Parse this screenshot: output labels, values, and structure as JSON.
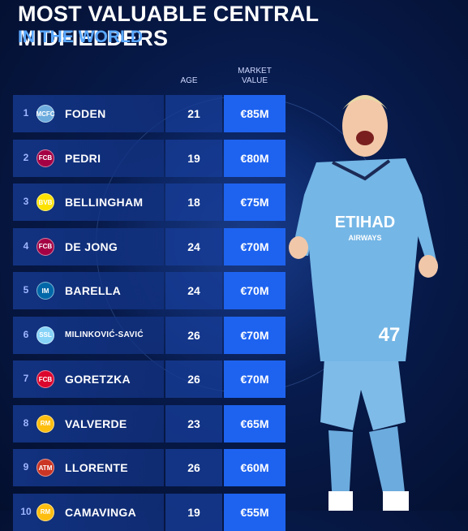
{
  "title": "MOST VALUABLE CENTRAL MIDFIELDERS",
  "subtitle": "IN THE WORLD",
  "headers": {
    "age": "AGE",
    "market_value_line1": "MARKET",
    "market_value_line2": "VALUE"
  },
  "rows": [
    {
      "rank": "1",
      "name": "FODEN",
      "age": "21",
      "value": "€85M",
      "crest": "MCFC",
      "crest_color": "#6cabdd"
    },
    {
      "rank": "2",
      "name": "PEDRI",
      "age": "19",
      "value": "€80M",
      "crest": "FCB",
      "crest_color": "#a50044"
    },
    {
      "rank": "3",
      "name": "BELLINGHAM",
      "age": "18",
      "value": "€75M",
      "crest": "BVB",
      "crest_color": "#fde100"
    },
    {
      "rank": "4",
      "name": "DE JONG",
      "age": "24",
      "value": "€70M",
      "crest": "FCB",
      "crest_color": "#a50044"
    },
    {
      "rank": "5",
      "name": "BARELLA",
      "age": "24",
      "value": "€70M",
      "crest": "IM",
      "crest_color": "#0068a8"
    },
    {
      "rank": "6",
      "name": "MILINKOVIĆ-SAVIĆ",
      "age": "26",
      "value": "€70M",
      "crest": "SSL",
      "crest_color": "#87d3f8"
    },
    {
      "rank": "7",
      "name": "GORETZKA",
      "age": "26",
      "value": "€70M",
      "crest": "FCB",
      "crest_color": "#dc052d"
    },
    {
      "rank": "8",
      "name": "VALVERDE",
      "age": "23",
      "value": "€65M",
      "crest": "RM",
      "crest_color": "#febe10"
    },
    {
      "rank": "9",
      "name": "LLORENTE",
      "age": "26",
      "value": "€60M",
      "crest": "ATM",
      "crest_color": "#cb3524"
    },
    {
      "rank": "10",
      "name": "CAMAVINGA",
      "age": "19",
      "value": "€55M",
      "crest": "RM",
      "crest_color": "#febe10"
    }
  ],
  "player": {
    "shirt_sponsor": "ETIHAD",
    "shirt_sponsor_line2": "AIRWAYS",
    "shirt_number": "47"
  }
}
